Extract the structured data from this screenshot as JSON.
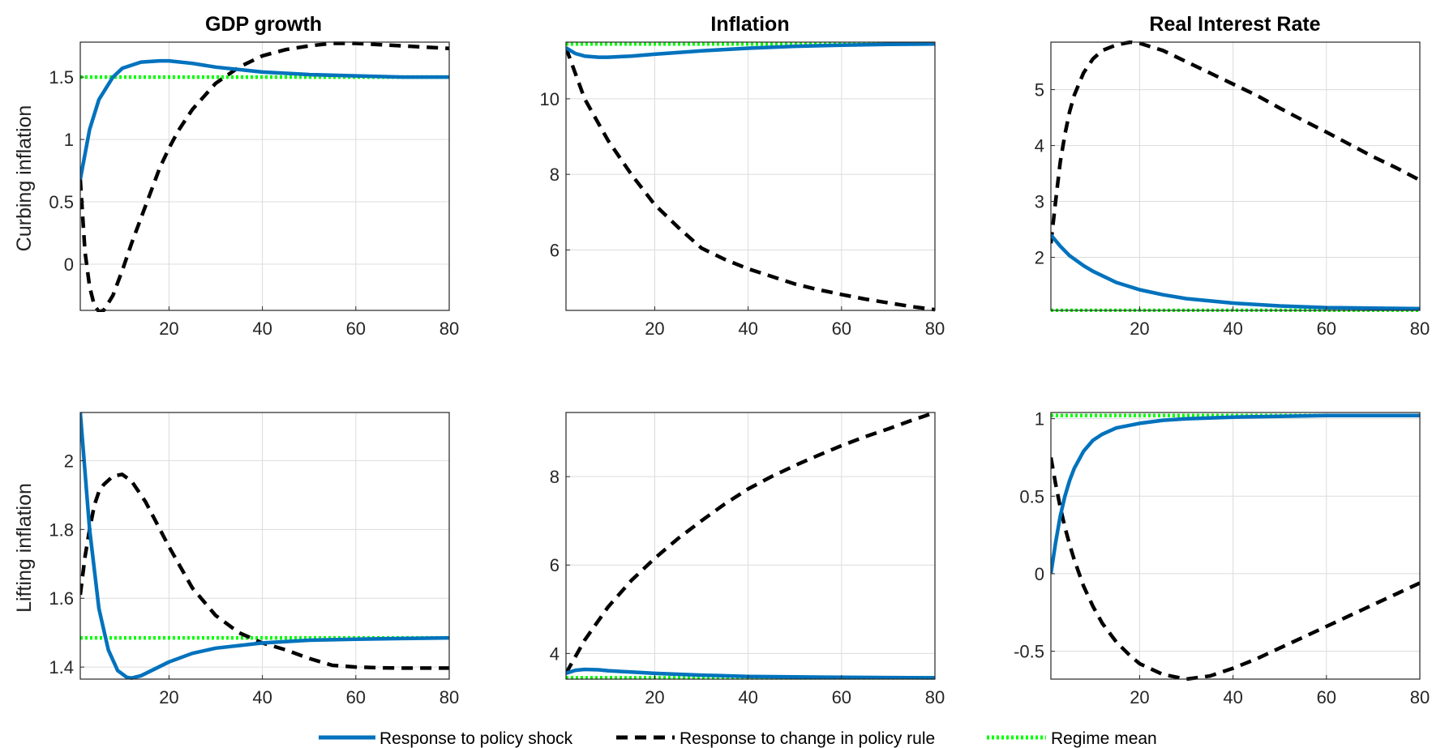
{
  "figure": {
    "column_titles": [
      "GDP growth",
      "Inflation",
      "Real Interest Rate"
    ],
    "row_labels": [
      "Curbing inflation",
      "Lifting inflation"
    ],
    "legend": [
      {
        "key": "policy_shock",
        "label": "Response to policy shock",
        "color": "#0072BD",
        "style": "solid"
      },
      {
        "key": "policy_rule",
        "label": "Response to change in policy rule",
        "color": "#000000",
        "style": "dashed"
      },
      {
        "key": "regime_mean",
        "label": "Regime mean",
        "color": "#00FF00",
        "style": "dotted"
      }
    ]
  },
  "chart_data": [
    {
      "type": "line",
      "title": "GDP growth",
      "ylabel": "Curbing inflation",
      "xlabel": "",
      "xlim": [
        1,
        80
      ],
      "ylim": [
        -0.37,
        1.78
      ],
      "xticks": [
        20,
        40,
        60,
        80
      ],
      "yticks": [
        0,
        0.5,
        1,
        1.5
      ],
      "ytick_labels": [
        "0",
        "0.5",
        "1",
        "1.5"
      ],
      "grid": true,
      "series": [
        {
          "name": "Response to policy shock",
          "x": [
            1,
            3,
            5,
            8,
            10,
            14,
            18,
            20,
            25,
            30,
            40,
            50,
            60,
            70,
            80
          ],
          "y": [
            0.68,
            1.08,
            1.32,
            1.5,
            1.57,
            1.62,
            1.63,
            1.63,
            1.61,
            1.58,
            1.54,
            1.52,
            1.51,
            1.5,
            1.5
          ]
        },
        {
          "name": "Response to change in policy rule",
          "x": [
            1,
            2,
            3,
            4,
            5,
            6,
            7,
            8,
            10,
            12,
            15,
            18,
            20,
            22,
            25,
            30,
            35,
            40,
            45,
            50,
            55,
            60,
            65,
            70,
            75,
            80
          ],
          "y": [
            0.68,
            0.1,
            -0.18,
            -0.33,
            -0.38,
            -0.37,
            -0.31,
            -0.25,
            -0.05,
            0.17,
            0.47,
            0.77,
            0.93,
            1.07,
            1.24,
            1.45,
            1.58,
            1.67,
            1.72,
            1.75,
            1.77,
            1.77,
            1.76,
            1.75,
            1.74,
            1.73
          ]
        },
        {
          "name": "Regime mean",
          "x": [
            1,
            80
          ],
          "y": [
            1.5,
            1.5
          ]
        }
      ]
    },
    {
      "type": "line",
      "title": "Inflation",
      "ylabel": "",
      "xlabel": "",
      "xlim": [
        1,
        80
      ],
      "ylim": [
        4.4,
        11.5
      ],
      "xticks": [
        20,
        40,
        60,
        80
      ],
      "yticks": [
        6,
        8,
        10
      ],
      "ytick_labels": [
        "6",
        "8",
        "10"
      ],
      "grid": true,
      "series": [
        {
          "name": "Response to policy shock",
          "x": [
            1,
            3,
            5,
            8,
            10,
            15,
            20,
            30,
            40,
            50,
            60,
            70,
            80
          ],
          "y": [
            11.35,
            11.2,
            11.13,
            11.1,
            11.1,
            11.13,
            11.18,
            11.27,
            11.34,
            11.39,
            11.42,
            11.44,
            11.45
          ]
        },
        {
          "name": "Response to change in policy rule",
          "x": [
            1,
            5,
            10,
            15,
            20,
            25,
            30,
            35,
            40,
            45,
            50,
            55,
            60,
            65,
            70,
            75,
            80
          ],
          "y": [
            11.35,
            10.0,
            8.9,
            8.0,
            7.2,
            6.6,
            6.05,
            5.75,
            5.5,
            5.3,
            5.1,
            4.95,
            4.82,
            4.7,
            4.6,
            4.5,
            4.42
          ]
        },
        {
          "name": "Regime mean",
          "x": [
            1,
            80
          ],
          "y": [
            11.45,
            11.45
          ]
        }
      ]
    },
    {
      "type": "line",
      "title": "Real Interest Rate",
      "ylabel": "",
      "xlabel": "",
      "xlim": [
        1,
        80
      ],
      "ylim": [
        1.05,
        5.85
      ],
      "xticks": [
        20,
        40,
        60,
        80
      ],
      "yticks": [
        2,
        3,
        4,
        5
      ],
      "ytick_labels": [
        "2",
        "3",
        "4",
        "5"
      ],
      "grid": true,
      "series": [
        {
          "name": "Response to policy shock",
          "x": [
            1,
            3,
            5,
            8,
            10,
            15,
            20,
            25,
            30,
            40,
            50,
            60,
            70,
            80
          ],
          "y": [
            2.4,
            2.2,
            2.03,
            1.85,
            1.75,
            1.55,
            1.42,
            1.33,
            1.26,
            1.18,
            1.13,
            1.1,
            1.09,
            1.08
          ]
        },
        {
          "name": "Response to change in policy rule",
          "x": [
            1,
            2,
            3,
            4,
            5,
            6,
            8,
            10,
            12,
            15,
            18,
            20,
            25,
            30,
            35,
            40,
            45,
            50,
            55,
            60,
            65,
            70,
            75,
            80
          ],
          "y": [
            2.25,
            3.0,
            3.7,
            4.2,
            4.6,
            4.9,
            5.3,
            5.55,
            5.7,
            5.8,
            5.85,
            5.83,
            5.7,
            5.5,
            5.3,
            5.1,
            4.9,
            4.67,
            4.45,
            4.24,
            4.02,
            3.8,
            3.6,
            3.38
          ]
        },
        {
          "name": "Regime mean",
          "x": [
            1,
            80
          ],
          "y": [
            1.05,
            1.05
          ]
        }
      ]
    },
    {
      "type": "line",
      "title": "",
      "ylabel": "Lifting inflation",
      "xlabel": "",
      "xlim": [
        1,
        80
      ],
      "ylim": [
        1.365,
        2.14
      ],
      "xticks": [
        20,
        40,
        60,
        80
      ],
      "yticks": [
        1.4,
        1.6,
        1.8,
        2
      ],
      "ytick_labels": [
        "1.4",
        "1.6",
        "1.8",
        "2"
      ],
      "grid": true,
      "series": [
        {
          "name": "Response to policy shock",
          "x": [
            1,
            3,
            5,
            7,
            9,
            11,
            12,
            14,
            17,
            20,
            25,
            30,
            40,
            50,
            60,
            70,
            80
          ],
          "y": [
            2.14,
            1.8,
            1.57,
            1.45,
            1.39,
            1.37,
            1.368,
            1.375,
            1.395,
            1.415,
            1.44,
            1.455,
            1.47,
            1.478,
            1.481,
            1.483,
            1.485
          ]
        },
        {
          "name": "Response to change in policy rule",
          "x": [
            1,
            2,
            3,
            4,
            5,
            6,
            8,
            10,
            12,
            15,
            20,
            25,
            30,
            35,
            40,
            45,
            50,
            55,
            60,
            65,
            70,
            75,
            80
          ],
          "y": [
            1.61,
            1.72,
            1.8,
            1.87,
            1.91,
            1.93,
            1.955,
            1.96,
            1.94,
            1.88,
            1.75,
            1.63,
            1.55,
            1.5,
            1.47,
            1.45,
            1.425,
            1.405,
            1.4,
            1.398,
            1.397,
            1.397,
            1.397
          ]
        },
        {
          "name": "Regime mean",
          "x": [
            1,
            80
          ],
          "y": [
            1.485,
            1.485
          ]
        }
      ]
    },
    {
      "type": "line",
      "title": "",
      "ylabel": "",
      "xlabel": "",
      "xlim": [
        1,
        80
      ],
      "ylim": [
        3.42,
        9.45
      ],
      "xticks": [
        20,
        40,
        60,
        80
      ],
      "yticks": [
        4,
        6,
        8
      ],
      "ytick_labels": [
        "4",
        "6",
        "8"
      ],
      "grid": true,
      "series": [
        {
          "name": "Response to policy shock",
          "x": [
            1,
            3,
            5,
            8,
            10,
            15,
            20,
            30,
            40,
            50,
            60,
            70,
            80
          ],
          "y": [
            3.55,
            3.62,
            3.64,
            3.63,
            3.61,
            3.58,
            3.55,
            3.51,
            3.48,
            3.47,
            3.46,
            3.455,
            3.45
          ]
        },
        {
          "name": "Response to change in policy rule",
          "x": [
            1,
            5,
            10,
            15,
            20,
            25,
            30,
            35,
            40,
            45,
            50,
            55,
            60,
            65,
            70,
            75,
            80
          ],
          "y": [
            3.55,
            4.3,
            5.05,
            5.65,
            6.15,
            6.6,
            7.0,
            7.38,
            7.72,
            8.0,
            8.25,
            8.48,
            8.7,
            8.9,
            9.08,
            9.27,
            9.45
          ]
        },
        {
          "name": "Regime mean",
          "x": [
            1,
            80
          ],
          "y": [
            3.45,
            3.45
          ]
        }
      ]
    },
    {
      "type": "line",
      "title": "",
      "ylabel": "",
      "xlabel": "",
      "xlim": [
        1,
        80
      ],
      "ylim": [
        -0.68,
        1.04
      ],
      "xticks": [
        20,
        40,
        60,
        80
      ],
      "yticks": [
        -0.5,
        0,
        0.5,
        1
      ],
      "ytick_labels": [
        "-0.5",
        "0",
        "0.5",
        "1"
      ],
      "grid": true,
      "series": [
        {
          "name": "Response to policy shock",
          "x": [
            1,
            2,
            3,
            4,
            5,
            6,
            8,
            10,
            12,
            15,
            20,
            25,
            30,
            40,
            50,
            60,
            70,
            80
          ],
          "y": [
            0.0,
            0.2,
            0.37,
            0.5,
            0.6,
            0.68,
            0.79,
            0.86,
            0.9,
            0.94,
            0.97,
            0.99,
            1.0,
            1.01,
            1.015,
            1.02,
            1.02,
            1.02
          ]
        },
        {
          "name": "Response to change in policy rule",
          "x": [
            1,
            2,
            3,
            4,
            5,
            6,
            8,
            10,
            12,
            15,
            18,
            20,
            25,
            30,
            35,
            40,
            45,
            50,
            55,
            60,
            65,
            70,
            75,
            80
          ],
          "y": [
            0.75,
            0.58,
            0.43,
            0.3,
            0.19,
            0.09,
            -0.08,
            -0.21,
            -0.32,
            -0.44,
            -0.53,
            -0.58,
            -0.65,
            -0.68,
            -0.66,
            -0.61,
            -0.55,
            -0.48,
            -0.41,
            -0.34,
            -0.27,
            -0.2,
            -0.13,
            -0.06
          ]
        },
        {
          "name": "Regime mean",
          "x": [
            1,
            80
          ],
          "y": [
            1.02,
            1.02
          ]
        }
      ]
    }
  ]
}
